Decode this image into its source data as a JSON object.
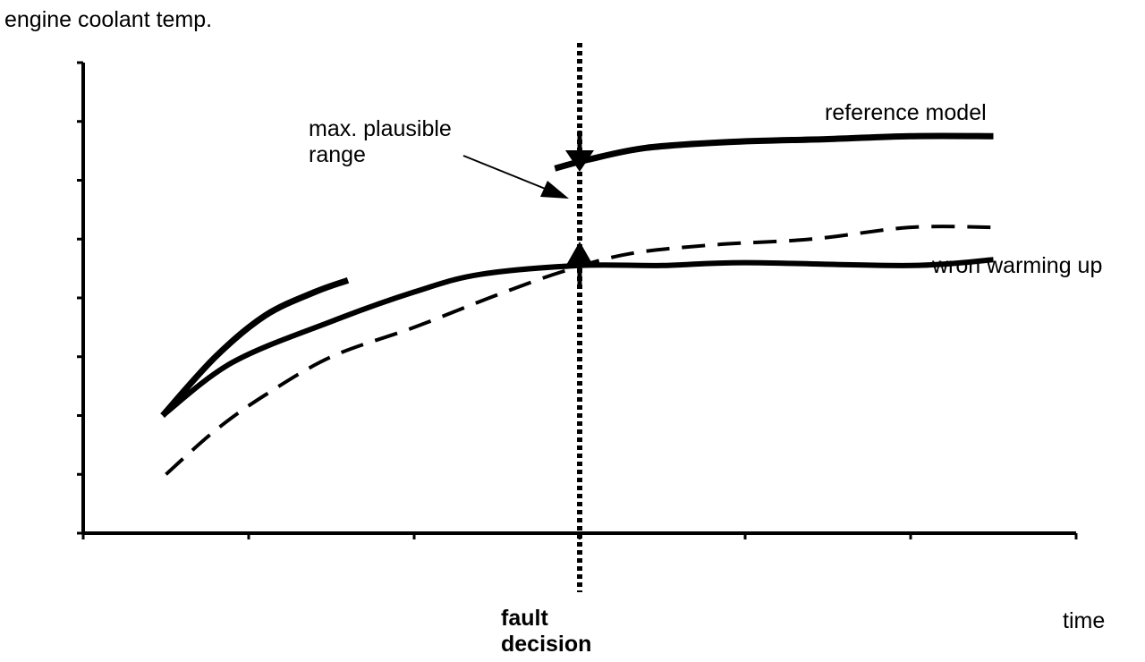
{
  "chart_data": {
    "type": "line",
    "ylabel": "engine coolant temp.",
    "xlabel": "time",
    "xlim": [
      0,
      6
    ],
    "ylim": [
      0,
      8
    ],
    "x_ticks": [
      0,
      1,
      2,
      3,
      4,
      5,
      6
    ],
    "y_ticks": [
      0,
      1,
      2,
      3,
      4,
      5,
      6,
      7,
      8
    ],
    "grid": false,
    "fault_decision_x": 3.0,
    "series": [
      {
        "style": "solid-thick",
        "segments": [
          [
            [
              0.48,
              2.0
            ],
            [
              0.8,
              3.0
            ],
            [
              1.1,
              3.7
            ],
            [
              1.4,
              4.1
            ],
            [
              1.6,
              4.3
            ]
          ],
          [
            [
              2.85,
              6.2
            ],
            [
              3.05,
              6.35
            ],
            [
              3.4,
              6.55
            ],
            [
              3.9,
              6.65
            ],
            [
              4.5,
              6.7
            ],
            [
              5.0,
              6.75
            ],
            [
              5.5,
              6.75
            ]
          ]
        ]
      },
      {
        "style": "solid",
        "segments": [
          [
            [
              0.48,
              2.0
            ],
            [
              0.9,
              2.9
            ],
            [
              1.5,
              3.6
            ],
            [
              2.0,
              4.1
            ],
            [
              2.4,
              4.4
            ],
            [
              3.0,
              4.55
            ],
            [
              3.5,
              4.55
            ],
            [
              4.0,
              4.6
            ],
            [
              5.0,
              4.55
            ],
            [
              5.5,
              4.65
            ]
          ]
        ]
      },
      {
        "style": "dashed",
        "segments": [
          [
            [
              0.5,
              1.0
            ],
            [
              0.8,
              1.75
            ],
            [
              1.1,
              2.35
            ],
            [
              1.5,
              3.0
            ],
            [
              2.0,
              3.5
            ],
            [
              2.5,
              4.05
            ],
            [
              2.9,
              4.45
            ],
            [
              3.3,
              4.75
            ],
            [
              3.8,
              4.9
            ],
            [
              4.4,
              5.0
            ],
            [
              5.0,
              5.2
            ],
            [
              5.5,
              5.2
            ]
          ]
        ]
      }
    ],
    "annotations": {
      "series_a_label": "reference model",
      "series_b_label": "wron warming up",
      "range_label": "max. plausible\nrange",
      "fault_label": "fault\ndecision"
    }
  }
}
